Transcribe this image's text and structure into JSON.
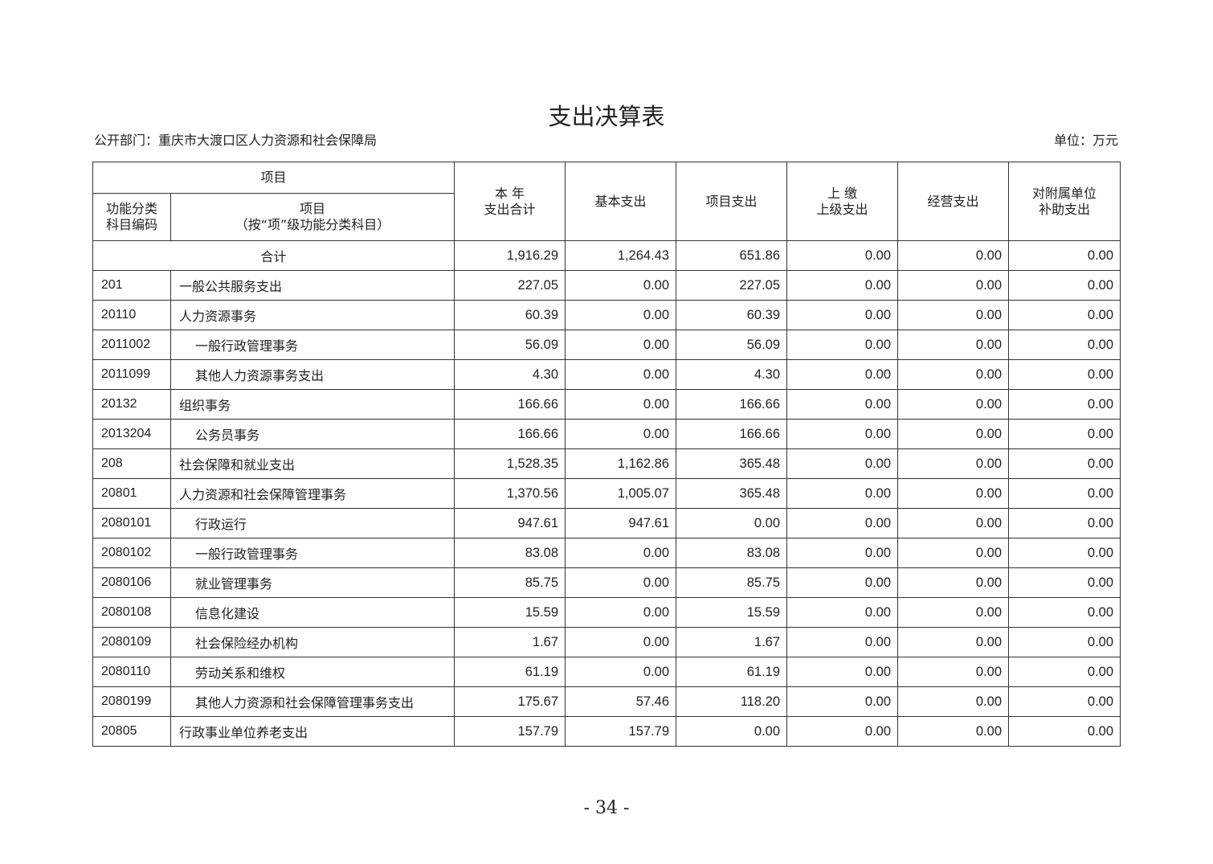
{
  "title": "支出决算表",
  "department": "公开部门：重庆市大渡口区人力资源和社会保障局",
  "unit": "单位：万元",
  "headers": {
    "item_group": "项目",
    "code": "功能分类\n科目编码",
    "item": "项目\n（按“项”级功能分类科目）",
    "total": "本 年\n支出合计",
    "basic": "基本支出",
    "project": "项目支出",
    "upper": "上 缴\n上级支出",
    "business": "经营支出",
    "subsidy": "对附属单位\n补助支出"
  },
  "total_row": {
    "label": "合计",
    "values": [
      "1,916.29",
      "1,264.43",
      "651.86",
      "0.00",
      "0.00",
      "0.00"
    ]
  },
  "rows": [
    {
      "code": "201",
      "name": "一般公共服务支出",
      "level": 1,
      "values": [
        "227.05",
        "0.00",
        "227.05",
        "0.00",
        "0.00",
        "0.00"
      ]
    },
    {
      "code": "20110",
      "name": "人力资源事务",
      "level": 1,
      "values": [
        "60.39",
        "0.00",
        "60.39",
        "0.00",
        "0.00",
        "0.00"
      ]
    },
    {
      "code": "2011002",
      "name": "一般行政管理事务",
      "level": 2,
      "values": [
        "56.09",
        "0.00",
        "56.09",
        "0.00",
        "0.00",
        "0.00"
      ]
    },
    {
      "code": "2011099",
      "name": "其他人力资源事务支出",
      "level": 2,
      "values": [
        "4.30",
        "0.00",
        "4.30",
        "0.00",
        "0.00",
        "0.00"
      ]
    },
    {
      "code": "20132",
      "name": "组织事务",
      "level": 1,
      "values": [
        "166.66",
        "0.00",
        "166.66",
        "0.00",
        "0.00",
        "0.00"
      ]
    },
    {
      "code": "2013204",
      "name": "公务员事务",
      "level": 2,
      "values": [
        "166.66",
        "0.00",
        "166.66",
        "0.00",
        "0.00",
        "0.00"
      ]
    },
    {
      "code": "208",
      "name": "社会保障和就业支出",
      "level": 1,
      "values": [
        "1,528.35",
        "1,162.86",
        "365.48",
        "0.00",
        "0.00",
        "0.00"
      ]
    },
    {
      "code": "20801",
      "name": "人力资源和社会保障管理事务",
      "level": 1,
      "values": [
        "1,370.56",
        "1,005.07",
        "365.48",
        "0.00",
        "0.00",
        "0.00"
      ]
    },
    {
      "code": "2080101",
      "name": "行政运行",
      "level": 2,
      "values": [
        "947.61",
        "947.61",
        "0.00",
        "0.00",
        "0.00",
        "0.00"
      ]
    },
    {
      "code": "2080102",
      "name": "一般行政管理事务",
      "level": 2,
      "values": [
        "83.08",
        "0.00",
        "83.08",
        "0.00",
        "0.00",
        "0.00"
      ]
    },
    {
      "code": "2080106",
      "name": "就业管理事务",
      "level": 2,
      "values": [
        "85.75",
        "0.00",
        "85.75",
        "0.00",
        "0.00",
        "0.00"
      ]
    },
    {
      "code": "2080108",
      "name": "信息化建设",
      "level": 2,
      "values": [
        "15.59",
        "0.00",
        "15.59",
        "0.00",
        "0.00",
        "0.00"
      ]
    },
    {
      "code": "2080109",
      "name": "社会保险经办机构",
      "level": 2,
      "values": [
        "1.67",
        "0.00",
        "1.67",
        "0.00",
        "0.00",
        "0.00"
      ]
    },
    {
      "code": "2080110",
      "name": "劳动关系和维权",
      "level": 2,
      "values": [
        "61.19",
        "0.00",
        "61.19",
        "0.00",
        "0.00",
        "0.00"
      ]
    },
    {
      "code": "2080199",
      "name": "其他人力资源和社会保障管理事务支出",
      "level": 2,
      "values": [
        "175.67",
        "57.46",
        "118.20",
        "0.00",
        "0.00",
        "0.00"
      ]
    },
    {
      "code": "20805",
      "name": "行政事业单位养老支出",
      "level": 1,
      "values": [
        "157.79",
        "157.79",
        "0.00",
        "0.00",
        "0.00",
        "0.00"
      ]
    }
  ],
  "page_number": "- 34 -"
}
